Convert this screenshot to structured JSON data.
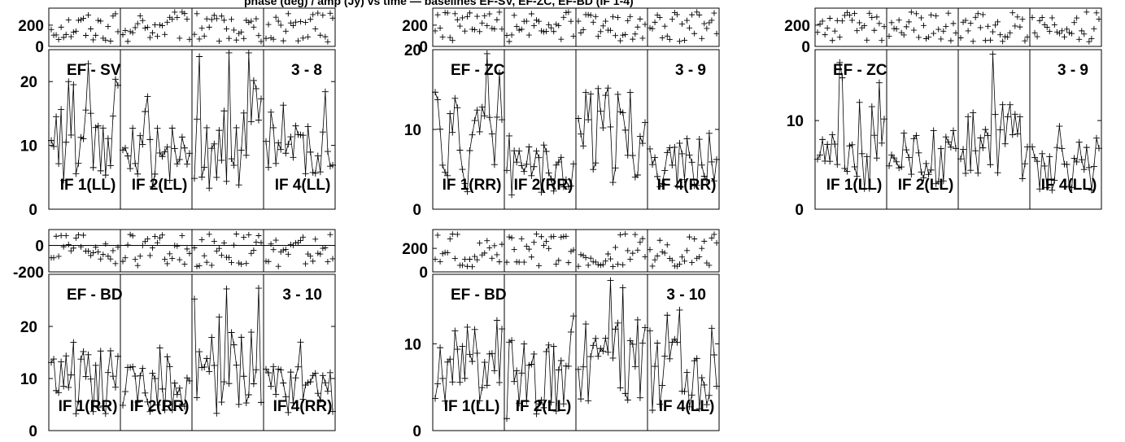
{
  "header": {
    "text": "phase (deg) / amp (Jy) vs time — baselines EF-SV, EF-ZC, EF-BD (IF 1-4)"
  },
  "chart_data": [
    {
      "type": "scatter",
      "baseline": "EF - SV",
      "baseline_num": "3 - 8",
      "if_labels": [
        "IF 1(LL)",
        "IF 2(LL)",
        "",
        "IF 4(LL)"
      ],
      "phase_ylim": [
        0,
        360
      ],
      "phase_ticks": [
        "0",
        "200"
      ],
      "amp_ylim": [
        0,
        25
      ],
      "amp_ticks": [
        "0",
        "10",
        "20"
      ],
      "amp_mean": [
        10,
        8,
        11,
        9
      ],
      "amp_spread": [
        4,
        3,
        5,
        3
      ]
    },
    {
      "type": "scatter",
      "baseline": "EF - ZC",
      "baseline_num": "3 - 9",
      "if_labels": [
        "IF 1(RR)",
        "IF 2(RR)",
        "",
        "IF 4(RR)"
      ],
      "phase_ylim": [
        0,
        360
      ],
      "phase_ticks": [
        "0",
        "200"
      ],
      "amp_ylim": [
        0,
        20
      ],
      "amp_ticks": [
        "0",
        "10",
        "20"
      ],
      "amp_mean": [
        8,
        5,
        9,
        6
      ],
      "amp_spread": [
        4,
        2,
        4,
        2
      ]
    },
    {
      "type": "scatter",
      "baseline": "EF - ZC",
      "baseline_num": "3 - 9",
      "if_labels": [
        "IF 1(LL)",
        "IF 2(LL)",
        "",
        "IF 4(LL)"
      ],
      "phase_ylim": [
        0,
        360
      ],
      "phase_ticks": [
        "0",
        "200"
      ],
      "amp_ylim": [
        0,
        18
      ],
      "amp_ticks": [
        "0",
        "10"
      ],
      "amp_mean": [
        7,
        6,
        8,
        5
      ],
      "amp_spread": [
        3,
        2,
        3,
        2
      ]
    },
    {
      "type": "scatter",
      "baseline": "EF - BD",
      "baseline_num": "3 - 10",
      "if_labels": [
        "IF 1(RR)",
        "IF 2(RR)",
        "",
        "IF 4(RR)"
      ],
      "phase_ylim": [
        -200,
        120
      ],
      "phase_ticks": [
        "-200",
        "0"
      ],
      "amp_ylim": [
        0,
        30
      ],
      "amp_ticks": [
        "0",
        "10",
        "20"
      ],
      "amp_mean": [
        9,
        8,
        11,
        8
      ],
      "amp_spread": [
        4,
        3,
        5,
        3
      ]
    },
    {
      "type": "scatter",
      "baseline": "EF - BD",
      "baseline_num": "3 - 10",
      "if_labels": [
        "IF 1(LL)",
        "IF 2(LL)",
        "",
        "IF 4(LL)"
      ],
      "phase_ylim": [
        0,
        360
      ],
      "phase_ticks": [
        "0",
        "200"
      ],
      "amp_ylim": [
        0,
        18
      ],
      "amp_ticks": [
        "0",
        "10"
      ],
      "amp_mean": [
        7,
        6,
        8,
        7
      ],
      "amp_spread": [
        3,
        3,
        3,
        3
      ]
    }
  ]
}
